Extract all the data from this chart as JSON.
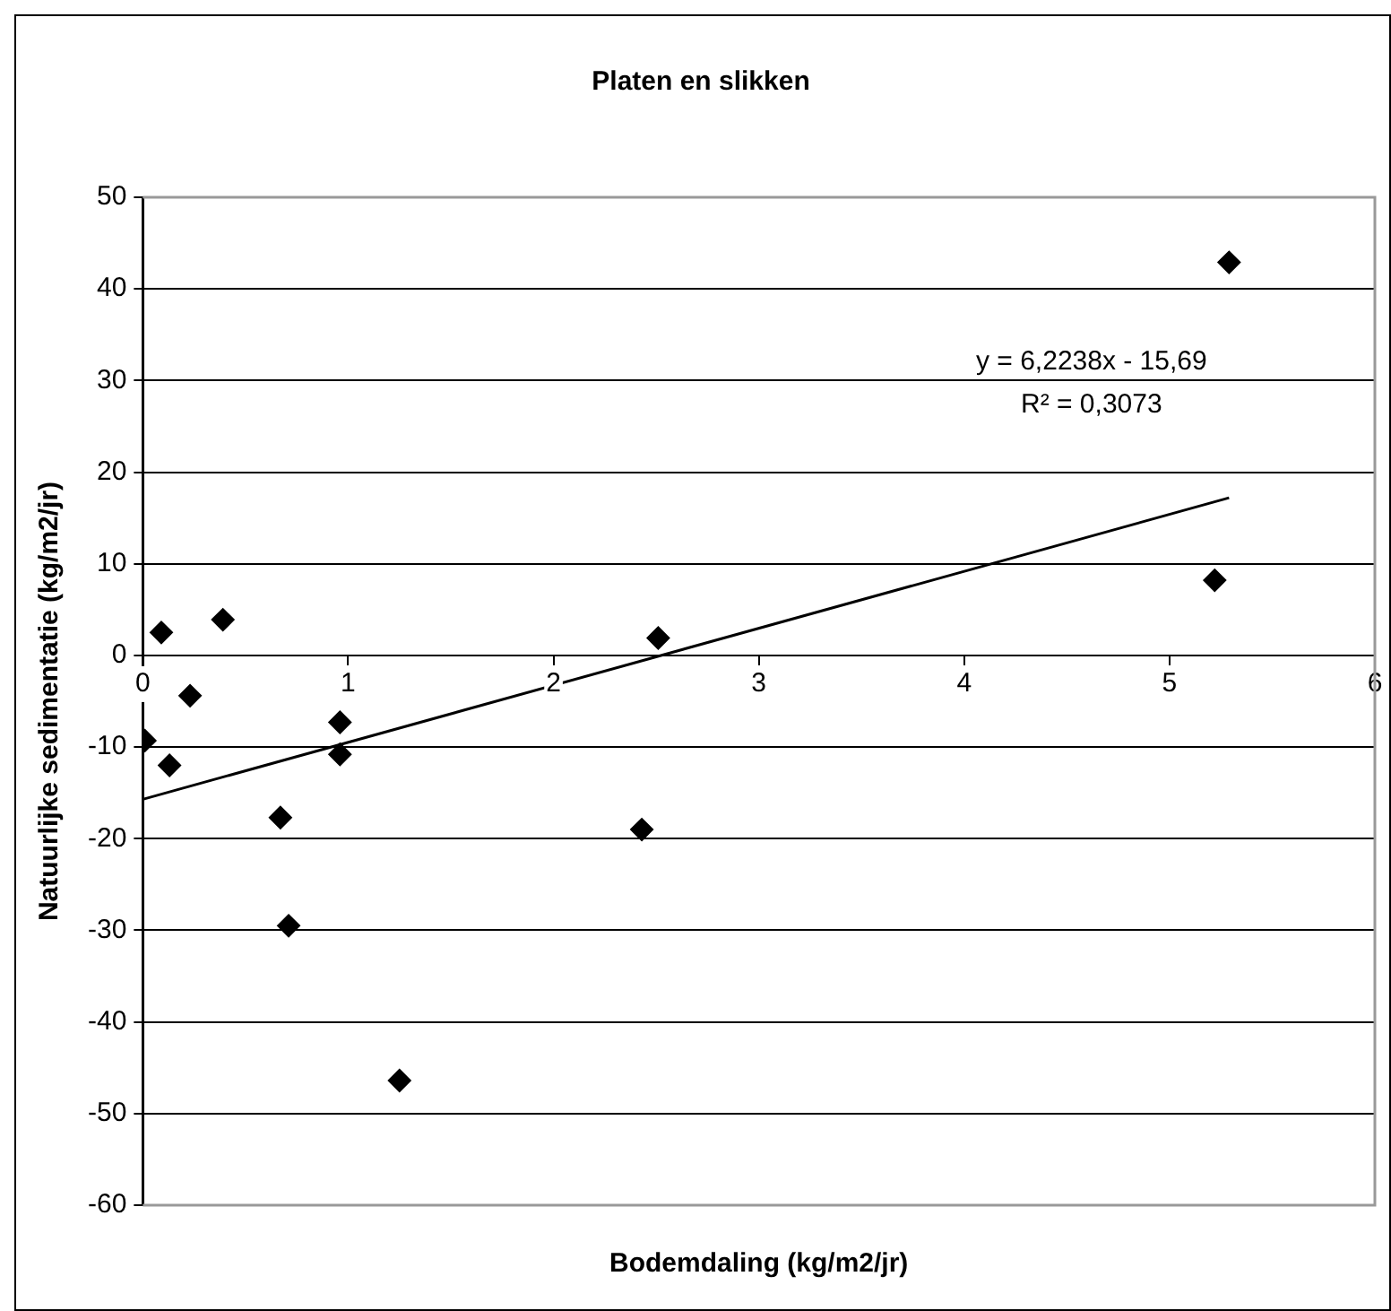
{
  "chart_data": {
    "type": "scatter",
    "title": "Platen en slikken",
    "xlabel": "Bodemdaling (kg/m2/jr)",
    "ylabel": "Natuurlijke sedimentatie (kg/m2/jr)",
    "annotations": [
      "y = 6,2238x - 15,69",
      "R² = 0,3073"
    ],
    "series": [
      {
        "color": "#000000",
        "x": [
          0.01,
          0.09,
          0.13,
          0.23,
          0.39,
          0.67,
          0.71,
          0.96,
          0.96,
          1.25,
          2.43,
          2.51,
          5.22,
          5.29
        ],
        "values": [
          -9.3,
          2.5,
          -12.0,
          -4.4,
          3.9,
          -17.7,
          -29.5,
          -7.3,
          -10.8,
          -46.4,
          -19.0,
          1.9,
          8.2,
          42.9
        ],
        "marker": "diamond"
      },
      {
        "type": "line",
        "color": "#000000",
        "x": [
          0,
          5.29
        ],
        "values": [
          -15.7,
          17.2
        ],
        "marker": "none",
        "line_style": "solid"
      }
    ],
    "xlim": [
      0,
      6
    ],
    "xticks": [
      0,
      1,
      2,
      3,
      4,
      5,
      6
    ],
    "ylim": [
      -60,
      50
    ],
    "yticks": [
      -60,
      -50,
      -40,
      -30,
      -20,
      -10,
      0,
      10,
      20,
      30,
      40,
      50
    ],
    "grid": "y",
    "legend": false
  }
}
